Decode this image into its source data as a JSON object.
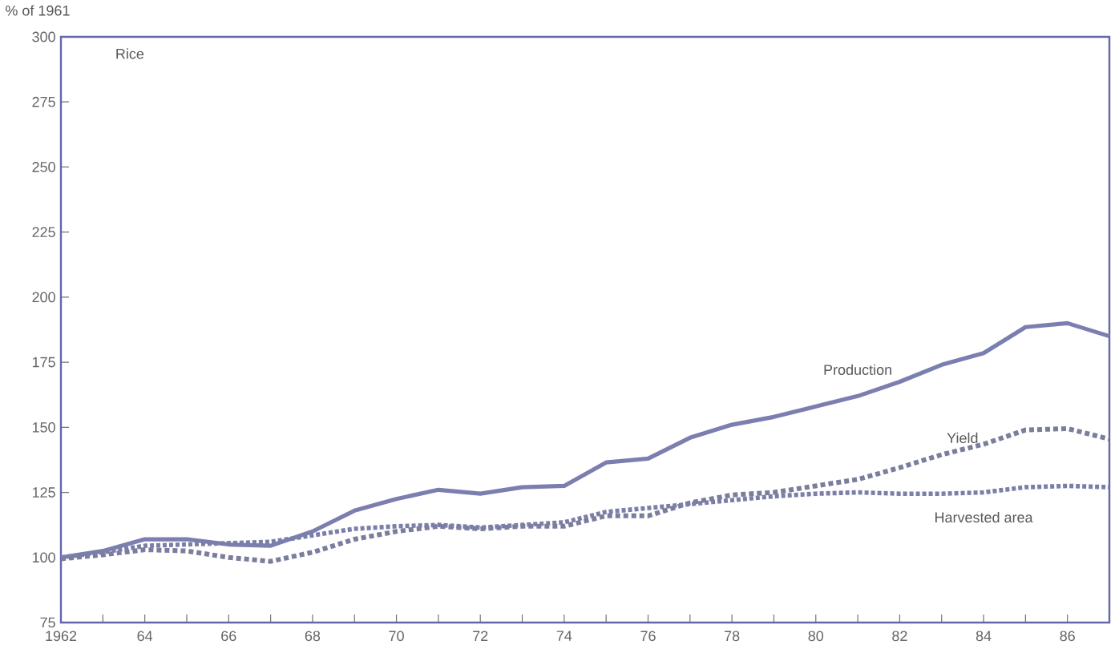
{
  "chart_data": {
    "type": "line",
    "title": "Rice",
    "ylabel": "% of 1961",
    "x": [
      1962,
      1963,
      1964,
      1965,
      1966,
      1967,
      1968,
      1969,
      1970,
      1971,
      1972,
      1973,
      1974,
      1975,
      1976,
      1977,
      1978,
      1979,
      1980,
      1981,
      1982,
      1983,
      1984,
      1985,
      1986,
      1987
    ],
    "series": [
      {
        "name": "Production",
        "color": "#7b7fb0",
        "line_style": "solid",
        "values": [
          100,
          102.5,
          107,
          107,
          105,
          104.5,
          110,
          118,
          122.5,
          126,
          124.5,
          127,
          127.5,
          136.5,
          138,
          146,
          151,
          154,
          158,
          162,
          167.5,
          174,
          178.5,
          188.5,
          190,
          185
        ]
      },
      {
        "name": "Yield",
        "color": "#7b7d9c",
        "line_style": "dotted",
        "values": [
          99.5,
          101,
          103,
          102.5,
          100,
          98.5,
          102,
          107,
          110,
          112,
          111,
          112,
          112,
          116,
          116,
          121,
          124,
          125,
          127.5,
          130,
          134.5,
          139.5,
          143.5,
          149,
          149.5,
          145.5
        ]
      },
      {
        "name": "Harvested area",
        "color": "#7b7fa8",
        "line_style": "dashed",
        "values": [
          100,
          102,
          104.5,
          105,
          105.5,
          106,
          108.5,
          111,
          112,
          112.5,
          111.5,
          112.5,
          113.5,
          117.5,
          119,
          120.5,
          122,
          123.5,
          124.5,
          125,
          124.5,
          124.5,
          125,
          127,
          127.5,
          127
        ]
      }
    ],
    "xlim": [
      1962,
      1987
    ],
    "xticks": [
      {
        "value": 1962,
        "label": "1962"
      },
      {
        "value": 1963,
        "label": null
      },
      {
        "value": 1964,
        "label": "64"
      },
      {
        "value": 1965,
        "label": null
      },
      {
        "value": 1966,
        "label": "66"
      },
      {
        "value": 1967,
        "label": null
      },
      {
        "value": 1968,
        "label": "68"
      },
      {
        "value": 1969,
        "label": null
      },
      {
        "value": 1970,
        "label": "70"
      },
      {
        "value": 1971,
        "label": null
      },
      {
        "value": 1972,
        "label": "72"
      },
      {
        "value": 1973,
        "label": null
      },
      {
        "value": 1974,
        "label": "74"
      },
      {
        "value": 1975,
        "label": null
      },
      {
        "value": 1976,
        "label": "76"
      },
      {
        "value": 1977,
        "label": null
      },
      {
        "value": 1978,
        "label": "78"
      },
      {
        "value": 1979,
        "label": null
      },
      {
        "value": 1980,
        "label": "80"
      },
      {
        "value": 1981,
        "label": null
      },
      {
        "value": 1982,
        "label": "82"
      },
      {
        "value": 1983,
        "label": null
      },
      {
        "value": 1984,
        "label": "84"
      },
      {
        "value": 1985,
        "label": null
      },
      {
        "value": 1986,
        "label": "86"
      }
    ],
    "ylim": [
      75,
      300
    ],
    "yticks": [
      75,
      100,
      125,
      150,
      175,
      200,
      225,
      250,
      275,
      300
    ]
  }
}
